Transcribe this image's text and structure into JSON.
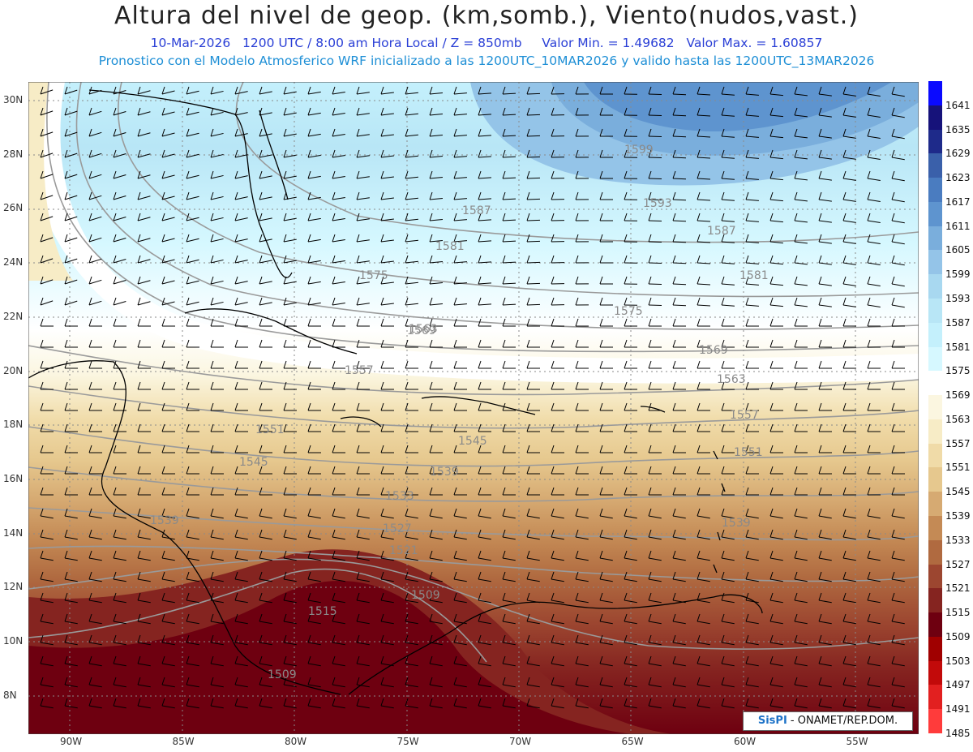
{
  "title": "Altura del nivel de geop. (km,somb.), Viento(nudos,vast.)",
  "subtitle": {
    "date": "10-Mar-2026",
    "time": "1200 UTC / 8:00 am Hora Local / Z = 850mb",
    "vmin": "Valor Min. = 1.49682",
    "vmax": "Valor Max. = 1.60857"
  },
  "forecast_line": "Pronostico con el Modelo Atmosferico WRF inicializado a las 1200UTC_10MAR2026 y valido hasta las  1200UTC_13MAR2026",
  "credit": {
    "logo": "SisPI",
    "text": "- ONAMET/REP.DOM."
  },
  "lat_ticks": [
    "30N",
    "28N",
    "26N",
    "24N",
    "22N",
    "20N",
    "18N",
    "16N",
    "14N",
    "12N",
    "10N",
    "8N"
  ],
  "lon_ticks": [
    "90W",
    "85W",
    "80W",
    "75W",
    "70W",
    "65W",
    "60W",
    "55W"
  ],
  "colorbar": {
    "levels": [
      "1485",
      "1491",
      "1497",
      "1503",
      "1509",
      "1515",
      "1521",
      "1527",
      "1533",
      "1539",
      "1545",
      "1551",
      "1557",
      "1563",
      "1569",
      "1575",
      "1581",
      "1587",
      "1593",
      "1599",
      "1605",
      "1611",
      "1617",
      "1623",
      "1629",
      "1635",
      "1641"
    ],
    "colors": [
      "#ff3b3b",
      "#e22020",
      "#c20a0a",
      "#a00000",
      "#6e0010",
      "#852420",
      "#9c4630",
      "#b06a40",
      "#c48a55",
      "#d6aa72",
      "#e6c88e",
      "#f0dba8",
      "#f7ecc6",
      "#fbf6e0",
      "#ffffff",
      "#d6f8ff",
      "#c4f0fc",
      "#b8e6f6",
      "#a8d8f0",
      "#94c4e8",
      "#7aaedc",
      "#5e94cf",
      "#4a7cc0",
      "#3a60aa",
      "#1e2a8a",
      "#16127a",
      "#0a0aff"
    ]
  },
  "contour_labels": [
    "1587",
    "1581",
    "1575",
    "1569",
    "1563",
    "1557",
    "1551",
    "1545",
    "1539",
    "1533",
    "1527",
    "1521",
    "1515",
    "1509",
    "1599",
    "1593"
  ],
  "map_extent": {
    "lon": [
      -92,
      -52
    ],
    "lat": [
      7,
      31
    ]
  }
}
